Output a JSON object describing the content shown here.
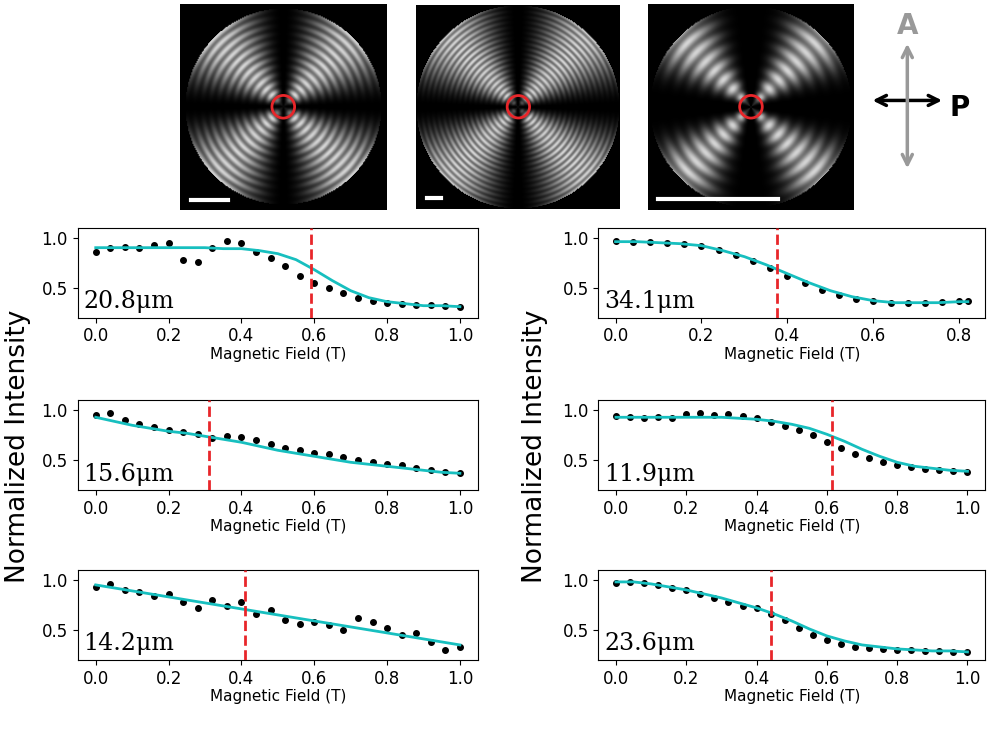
{
  "polarizer_diagram": {
    "analyzer": "A",
    "polarizer": "P"
  },
  "y_label": "Normalized Intensity",
  "chart_data": [
    {
      "type": "scatter",
      "annotation": "20.8μm",
      "xlabel": "Magnetic Field (T)",
      "xlim": [
        -0.05,
        1.05
      ],
      "ylim": [
        0.2,
        1.1
      ],
      "xticks": [
        0.0,
        0.2,
        0.4,
        0.6,
        0.8,
        1.0
      ],
      "yticks": [
        0.5,
        1.0
      ],
      "series": [
        {
          "type": "scatter",
          "color": "#000000",
          "marker": "circle",
          "x": [
            0.0,
            0.04,
            0.08,
            0.12,
            0.16,
            0.2,
            0.24,
            0.28,
            0.32,
            0.36,
            0.4,
            0.44,
            0.48,
            0.52,
            0.56,
            0.6,
            0.64,
            0.68,
            0.72,
            0.76,
            0.8,
            0.84,
            0.88,
            0.92,
            0.96,
            1.0
          ],
          "values": [
            0.86,
            0.9,
            0.91,
            0.9,
            0.93,
            0.95,
            0.78,
            0.76,
            0.9,
            0.97,
            0.95,
            0.86,
            0.8,
            0.72,
            0.62,
            0.55,
            0.5,
            0.45,
            0.4,
            0.37,
            0.35,
            0.34,
            0.33,
            0.33,
            0.32,
            0.31
          ]
        },
        {
          "type": "line",
          "color": "#17bfbf",
          "line_style": "solid",
          "x": [
            0.0,
            0.05,
            0.1,
            0.15,
            0.2,
            0.25,
            0.3,
            0.35,
            0.4,
            0.45,
            0.5,
            0.55,
            0.6,
            0.65,
            0.7,
            0.75,
            0.8,
            0.85,
            0.9,
            0.95,
            1.0
          ],
          "values": [
            0.9,
            0.9,
            0.9,
            0.9,
            0.9,
            0.9,
            0.9,
            0.89,
            0.89,
            0.87,
            0.84,
            0.78,
            0.68,
            0.57,
            0.47,
            0.4,
            0.36,
            0.34,
            0.32,
            0.32,
            0.31
          ]
        },
        {
          "type": "vline",
          "color": "#e8262a",
          "line_style": "dashed",
          "x": [
            0.59
          ]
        }
      ]
    },
    {
      "type": "scatter",
      "annotation": "15.6μm",
      "xlabel": "Magnetic Field (T)",
      "xlim": [
        -0.05,
        1.05
      ],
      "ylim": [
        0.2,
        1.1
      ],
      "xticks": [
        0.0,
        0.2,
        0.4,
        0.6,
        0.8,
        1.0
      ],
      "yticks": [
        0.5,
        1.0
      ],
      "series": [
        {
          "type": "scatter",
          "color": "#000000",
          "marker": "circle",
          "x": [
            0.0,
            0.04,
            0.08,
            0.12,
            0.16,
            0.2,
            0.24,
            0.28,
            0.32,
            0.36,
            0.4,
            0.44,
            0.48,
            0.52,
            0.56,
            0.6,
            0.64,
            0.68,
            0.72,
            0.76,
            0.8,
            0.84,
            0.88,
            0.92,
            0.96,
            1.0
          ],
          "values": [
            0.95,
            0.97,
            0.9,
            0.86,
            0.83,
            0.8,
            0.78,
            0.76,
            0.72,
            0.74,
            0.73,
            0.7,
            0.66,
            0.62,
            0.6,
            0.57,
            0.56,
            0.53,
            0.5,
            0.48,
            0.46,
            0.45,
            0.42,
            0.4,
            0.38,
            0.37
          ]
        },
        {
          "type": "line",
          "color": "#17bfbf",
          "line_style": "solid",
          "x": [
            0.0,
            0.05,
            0.1,
            0.15,
            0.2,
            0.25,
            0.3,
            0.35,
            0.4,
            0.45,
            0.5,
            0.55,
            0.6,
            0.65,
            0.7,
            0.75,
            0.8,
            0.85,
            0.9,
            0.95,
            1.0
          ],
          "values": [
            0.93,
            0.89,
            0.85,
            0.82,
            0.79,
            0.77,
            0.74,
            0.71,
            0.68,
            0.64,
            0.6,
            0.57,
            0.54,
            0.51,
            0.48,
            0.46,
            0.44,
            0.42,
            0.4,
            0.38,
            0.37
          ]
        },
        {
          "type": "vline",
          "color": "#e8262a",
          "line_style": "dashed",
          "x": [
            0.31
          ]
        }
      ]
    },
    {
      "type": "scatter",
      "annotation": "14.2μm",
      "xlabel": "Magnetic Field (T)",
      "xlim": [
        -0.05,
        1.05
      ],
      "ylim": [
        0.2,
        1.1
      ],
      "xticks": [
        0.0,
        0.2,
        0.4,
        0.6,
        0.8,
        1.0
      ],
      "yticks": [
        0.5,
        1.0
      ],
      "series": [
        {
          "type": "scatter",
          "color": "#000000",
          "marker": "circle",
          "x": [
            0.0,
            0.04,
            0.08,
            0.12,
            0.16,
            0.2,
            0.24,
            0.28,
            0.32,
            0.36,
            0.4,
            0.44,
            0.48,
            0.52,
            0.56,
            0.6,
            0.64,
            0.68,
            0.72,
            0.76,
            0.8,
            0.84,
            0.88,
            0.92,
            0.96,
            1.0
          ],
          "values": [
            0.93,
            0.96,
            0.9,
            0.88,
            0.84,
            0.86,
            0.78,
            0.72,
            0.8,
            0.74,
            0.78,
            0.66,
            0.7,
            0.6,
            0.56,
            0.58,
            0.55,
            0.5,
            0.62,
            0.58,
            0.52,
            0.45,
            0.47,
            0.38,
            0.3,
            0.33
          ]
        },
        {
          "type": "line",
          "color": "#17bfbf",
          "line_style": "solid",
          "x": [
            0.0,
            0.05,
            0.1,
            0.15,
            0.2,
            0.25,
            0.3,
            0.35,
            0.4,
            0.45,
            0.5,
            0.55,
            0.6,
            0.65,
            0.7,
            0.75,
            0.8,
            0.85,
            0.9,
            0.95,
            1.0
          ],
          "values": [
            0.95,
            0.92,
            0.89,
            0.86,
            0.83,
            0.8,
            0.77,
            0.74,
            0.71,
            0.68,
            0.65,
            0.62,
            0.59,
            0.56,
            0.53,
            0.5,
            0.47,
            0.44,
            0.41,
            0.38,
            0.35
          ]
        },
        {
          "type": "vline",
          "color": "#e8262a",
          "line_style": "dashed",
          "x": [
            0.41
          ]
        }
      ]
    },
    {
      "type": "scatter",
      "annotation": "34.1μm",
      "xlabel": "Magnetic Field (T)",
      "xlim": [
        -0.04,
        0.86
      ],
      "ylim": [
        0.2,
        1.1
      ],
      "xticks": [
        0.0,
        0.2,
        0.4,
        0.6,
        0.8
      ],
      "yticks": [
        0.5,
        1.0
      ],
      "series": [
        {
          "type": "scatter",
          "color": "#000000",
          "marker": "circle",
          "x": [
            0.0,
            0.04,
            0.08,
            0.12,
            0.16,
            0.2,
            0.24,
            0.28,
            0.32,
            0.36,
            0.4,
            0.44,
            0.48,
            0.52,
            0.56,
            0.6,
            0.64,
            0.68,
            0.72,
            0.76,
            0.8,
            0.82
          ],
          "values": [
            0.97,
            0.96,
            0.96,
            0.95,
            0.94,
            0.92,
            0.88,
            0.83,
            0.77,
            0.7,
            0.62,
            0.55,
            0.48,
            0.43,
            0.39,
            0.37,
            0.35,
            0.35,
            0.35,
            0.36,
            0.37,
            0.37
          ]
        },
        {
          "type": "line",
          "color": "#17bfbf",
          "line_style": "solid",
          "x": [
            0.0,
            0.05,
            0.1,
            0.15,
            0.2,
            0.25,
            0.3,
            0.35,
            0.4,
            0.45,
            0.5,
            0.55,
            0.6,
            0.65,
            0.7,
            0.75,
            0.8,
            0.82
          ],
          "values": [
            0.96,
            0.96,
            0.95,
            0.94,
            0.92,
            0.87,
            0.81,
            0.73,
            0.64,
            0.55,
            0.47,
            0.41,
            0.37,
            0.35,
            0.35,
            0.35,
            0.36,
            0.36
          ]
        },
        {
          "type": "vline",
          "color": "#e8262a",
          "line_style": "dashed",
          "x": [
            0.375
          ]
        }
      ]
    },
    {
      "type": "scatter",
      "annotation": "11.9μm",
      "xlabel": "Magnetic Field (T)",
      "xlim": [
        -0.05,
        1.05
      ],
      "ylim": [
        0.2,
        1.1
      ],
      "xticks": [
        0.0,
        0.2,
        0.4,
        0.6,
        0.8,
        1.0
      ],
      "yticks": [
        0.5,
        1.0
      ],
      "series": [
        {
          "type": "scatter",
          "color": "#000000",
          "marker": "circle",
          "x": [
            0.0,
            0.04,
            0.08,
            0.12,
            0.16,
            0.2,
            0.24,
            0.28,
            0.32,
            0.36,
            0.4,
            0.44,
            0.48,
            0.52,
            0.56,
            0.6,
            0.64,
            0.68,
            0.72,
            0.76,
            0.8,
            0.84,
            0.88,
            0.92,
            0.96,
            1.0
          ],
          "values": [
            0.94,
            0.93,
            0.92,
            0.93,
            0.92,
            0.96,
            0.97,
            0.95,
            0.96,
            0.94,
            0.92,
            0.88,
            0.84,
            0.8,
            0.75,
            0.68,
            0.62,
            0.56,
            0.52,
            0.48,
            0.45,
            0.43,
            0.41,
            0.4,
            0.39,
            0.38
          ]
        },
        {
          "type": "line",
          "color": "#17bfbf",
          "line_style": "solid",
          "x": [
            0.0,
            0.05,
            0.1,
            0.15,
            0.2,
            0.25,
            0.3,
            0.35,
            0.4,
            0.45,
            0.5,
            0.55,
            0.6,
            0.65,
            0.7,
            0.75,
            0.8,
            0.85,
            0.9,
            0.95,
            1.0
          ],
          "values": [
            0.93,
            0.93,
            0.93,
            0.93,
            0.93,
            0.93,
            0.93,
            0.92,
            0.91,
            0.89,
            0.86,
            0.82,
            0.76,
            0.69,
            0.61,
            0.54,
            0.48,
            0.44,
            0.42,
            0.4,
            0.39
          ]
        },
        {
          "type": "vline",
          "color": "#e8262a",
          "line_style": "dashed",
          "x": [
            0.615
          ]
        }
      ]
    },
    {
      "type": "scatter",
      "annotation": "23.6μm",
      "xlabel": "Magnetic Field (T)",
      "xlim": [
        -0.05,
        1.05
      ],
      "ylim": [
        0.2,
        1.1
      ],
      "xticks": [
        0.0,
        0.2,
        0.4,
        0.6,
        0.8,
        1.0
      ],
      "yticks": [
        0.5,
        1.0
      ],
      "series": [
        {
          "type": "scatter",
          "color": "#000000",
          "marker": "circle",
          "x": [
            0.0,
            0.04,
            0.08,
            0.12,
            0.16,
            0.2,
            0.24,
            0.28,
            0.32,
            0.36,
            0.4,
            0.44,
            0.48,
            0.52,
            0.56,
            0.6,
            0.64,
            0.68,
            0.72,
            0.76,
            0.8,
            0.84,
            0.88,
            0.92,
            0.96,
            1.0
          ],
          "values": [
            0.97,
            0.98,
            0.97,
            0.95,
            0.92,
            0.9,
            0.86,
            0.82,
            0.78,
            0.74,
            0.72,
            0.66,
            0.6,
            0.52,
            0.45,
            0.4,
            0.36,
            0.33,
            0.32,
            0.31,
            0.3,
            0.3,
            0.29,
            0.29,
            0.28,
            0.28
          ]
        },
        {
          "type": "line",
          "color": "#17bfbf",
          "line_style": "solid",
          "x": [
            0.0,
            0.05,
            0.1,
            0.15,
            0.2,
            0.25,
            0.3,
            0.35,
            0.4,
            0.45,
            0.5,
            0.55,
            0.6,
            0.65,
            0.7,
            0.75,
            0.8,
            0.85,
            0.9,
            0.95,
            1.0
          ],
          "values": [
            0.98,
            0.98,
            0.96,
            0.93,
            0.9,
            0.86,
            0.82,
            0.77,
            0.72,
            0.66,
            0.59,
            0.51,
            0.44,
            0.39,
            0.35,
            0.33,
            0.31,
            0.3,
            0.29,
            0.29,
            0.28
          ]
        },
        {
          "type": "vline",
          "color": "#e8262a",
          "line_style": "dashed",
          "x": [
            0.44
          ]
        }
      ]
    }
  ]
}
